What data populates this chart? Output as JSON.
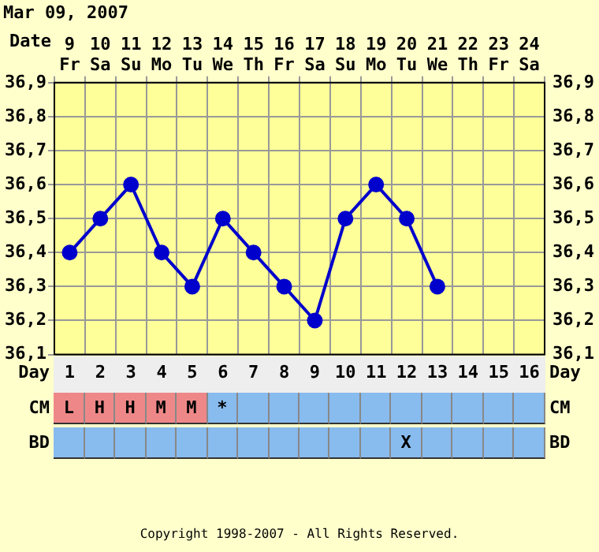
{
  "chart_data": [
    {
      "type": "line",
      "title": "Mar 09, 2007",
      "xlabel": "Date",
      "x2label": "Day",
      "categories": [
        "9 Fr",
        "10 Sa",
        "11 Su",
        "12 Mo",
        "13 Tu",
        "14 We",
        "15 Th",
        "16 Fr",
        "17 Sa",
        "18 Su",
        "19 Mo",
        "20 Tu",
        "21 We",
        "22 Th",
        "23 Fr",
        "24 Sa"
      ],
      "series": [
        {
          "color": "#0000cc",
          "values": [
            36.4,
            36.5,
            36.6,
            36.4,
            36.3,
            36.5,
            36.4,
            36.3,
            36.2,
            36.5,
            36.6,
            36.5,
            36.3,
            null,
            null,
            null
          ]
        }
      ],
      "ylim": [
        36.1,
        36.9
      ],
      "yticks": [
        {
          "value": 36.1,
          "label": "36,1"
        },
        {
          "value": 36.2,
          "label": "36,2"
        },
        {
          "value": 36.3,
          "label": "36,3"
        },
        {
          "value": 36.4,
          "label": "36,4"
        },
        {
          "value": 36.5,
          "label": "36,5"
        },
        {
          "value": 36.6,
          "label": "36,6"
        },
        {
          "value": 36.7,
          "label": "36,7"
        },
        {
          "value": 36.8,
          "label": "36,8"
        },
        {
          "value": 36.9,
          "label": "36,9"
        }
      ],
      "y2lim": [
        36.1,
        36.9
      ],
      "y2ticks": [
        {
          "value": 36.1,
          "label": "36,1"
        },
        {
          "value": 36.2,
          "label": "36,2"
        },
        {
          "value": 36.3,
          "label": "36,3"
        },
        {
          "value": 36.4,
          "label": "36,4"
        },
        {
          "value": 36.5,
          "label": "36,5"
        },
        {
          "value": 36.6,
          "label": "36,6"
        },
        {
          "value": 36.7,
          "label": "36,7"
        },
        {
          "value": 36.8,
          "label": "36,8"
        },
        {
          "value": 36.9,
          "label": "36,9"
        }
      ],
      "x2lim": [
        0.5,
        16.5
      ],
      "x2ticks": [
        1,
        2,
        3,
        4,
        5,
        6,
        7,
        8,
        9,
        10,
        11,
        12,
        13,
        14,
        15,
        16
      ],
      "grid": true,
      "marker": "circle",
      "line_style": "solid",
      "legend": false
    },
    {
      "type": "other",
      "y_categories": [
        "CM",
        "BD"
      ],
      "cell_labels": [
        [
          "L",
          "H",
          "H",
          "M",
          "M",
          "*",
          null,
          null,
          null,
          null,
          null,
          null,
          null,
          null,
          null,
          null
        ],
        [
          null,
          null,
          null,
          null,
          null,
          null,
          null,
          null,
          null,
          null,
          null,
          "X",
          null,
          null,
          null,
          null
        ]
      ],
      "colors": [
        [
          "#ee8888",
          "#ee8888",
          "#ee8888",
          "#ee8888",
          "#ee8888",
          "#88bbee",
          "#88bbee",
          "#88bbee",
          "#88bbee",
          "#88bbee",
          "#88bbee",
          "#88bbee",
          "#88bbee",
          "#88bbee",
          "#88bbee",
          "#88bbee"
        ],
        [
          "#88bbee",
          "#88bbee",
          "#88bbee",
          "#88bbee",
          "#88bbee",
          "#88bbee",
          "#88bbee",
          "#88bbee",
          "#88bbee",
          "#88bbee",
          "#88bbee",
          "#88bbee",
          "#88bbee",
          "#88bbee",
          "#88bbee",
          "#88bbee"
        ]
      ],
      "annotations": [
        "Copyright 1998-2007 - All Rights Reserved."
      ]
    }
  ]
}
